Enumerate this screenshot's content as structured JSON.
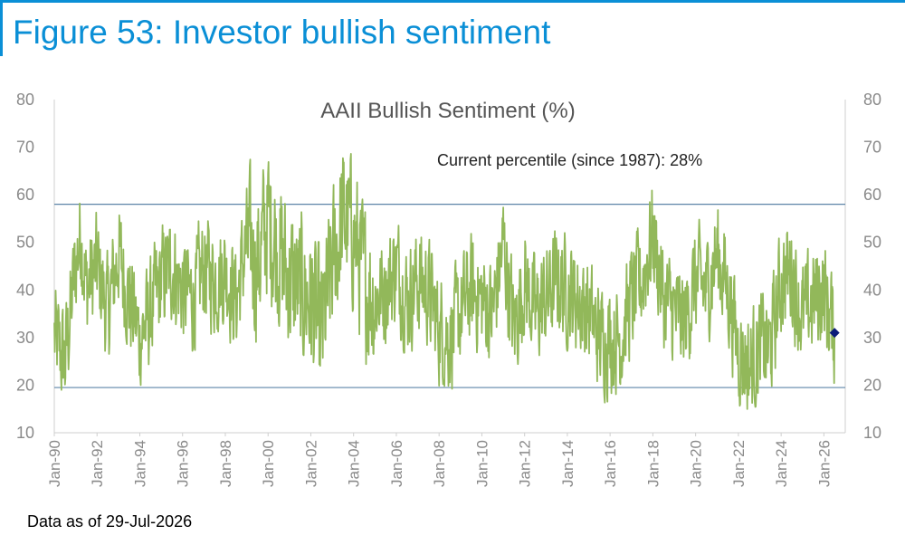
{
  "figure_title": "Figure 53: Investor bullish sentiment",
  "footnote": "Data as of 29-Jul-2026",
  "colors": {
    "accent": "#0a8fd6",
    "series": "#92b85a",
    "reference_lines": "#5d84a8",
    "marker": "#0c1d7a"
  },
  "chart_data": {
    "type": "line",
    "title": "AAII Bullish Sentiment (%)",
    "annotation": "Current percentile (since 1987): 28%",
    "xlabel": "",
    "ylabel": "",
    "ylim": [
      10,
      80
    ],
    "yticks": [
      10,
      20,
      30,
      40,
      50,
      60,
      70,
      80
    ],
    "xlim": [
      "1990-01",
      "2027-01"
    ],
    "xticks": [
      "Jan-90",
      "Jan-92",
      "Jan-94",
      "Jan-96",
      "Jan-98",
      "Jan-00",
      "Jan-02",
      "Jan-04",
      "Jan-06",
      "Jan-08",
      "Jan-10",
      "Jan-12",
      "Jan-14",
      "Jan-16",
      "Jan-18",
      "Jan-20",
      "Jan-22",
      "Jan-24",
      "Jan-26"
    ],
    "grid": false,
    "secondary_y_axis": true,
    "reference_lines": [
      58,
      19.5
    ],
    "series": [
      {
        "x": [
          "1990-01",
          "1990-07",
          "1991-01",
          "1991-04",
          "1991-07",
          "1992-01",
          "1992-07",
          "1993-01",
          "1993-07",
          "1994-01",
          "1994-07",
          "1995-01",
          "1995-07",
          "1996-01",
          "1996-07",
          "1997-01",
          "1997-07",
          "1998-01",
          "1998-07",
          "1999-01",
          "1999-07",
          "2000-01",
          "2000-07",
          "2001-01",
          "2001-07",
          "2002-01",
          "2002-07",
          "2003-01",
          "2003-07",
          "2004-01",
          "2004-07",
          "2005-01",
          "2005-07",
          "2006-01",
          "2006-07",
          "2007-01",
          "2007-07",
          "2008-01",
          "2008-07",
          "2009-01",
          "2009-07",
          "2010-01",
          "2010-07",
          "2011-01",
          "2011-07",
          "2012-01",
          "2012-07",
          "2013-01",
          "2013-07",
          "2014-01",
          "2014-07",
          "2015-01",
          "2015-07",
          "2016-01",
          "2016-07",
          "2017-01",
          "2017-07",
          "2018-01",
          "2018-07",
          "2019-01",
          "2019-07",
          "2020-01",
          "2020-07",
          "2021-01",
          "2021-07",
          "2022-01",
          "2022-07",
          "2023-01",
          "2023-07",
          "2024-01",
          "2024-07",
          "2025-01",
          "2025-07",
          "2026-01",
          "2026-07"
        ],
        "values": [
          30,
          25,
          45,
          52,
          40,
          45,
          35,
          48,
          38,
          30,
          35,
          42,
          45,
          40,
          38,
          45,
          42,
          44,
          38,
          50,
          45,
          55,
          48,
          42,
          40,
          38,
          30,
          45,
          55,
          52,
          42,
          38,
          40,
          45,
          38,
          42,
          40,
          32,
          30,
          35,
          40,
          38,
          35,
          50,
          32,
          42,
          35,
          38,
          42,
          40,
          38,
          35,
          30,
          30,
          30,
          38,
          42,
          52,
          38,
          35,
          33,
          42,
          40,
          48,
          40,
          28,
          24,
          28,
          28,
          42,
          44,
          34,
          38,
          40,
          31
        ]
      }
    ],
    "current_marker": {
      "x": "2026-07",
      "y": 31
    }
  }
}
